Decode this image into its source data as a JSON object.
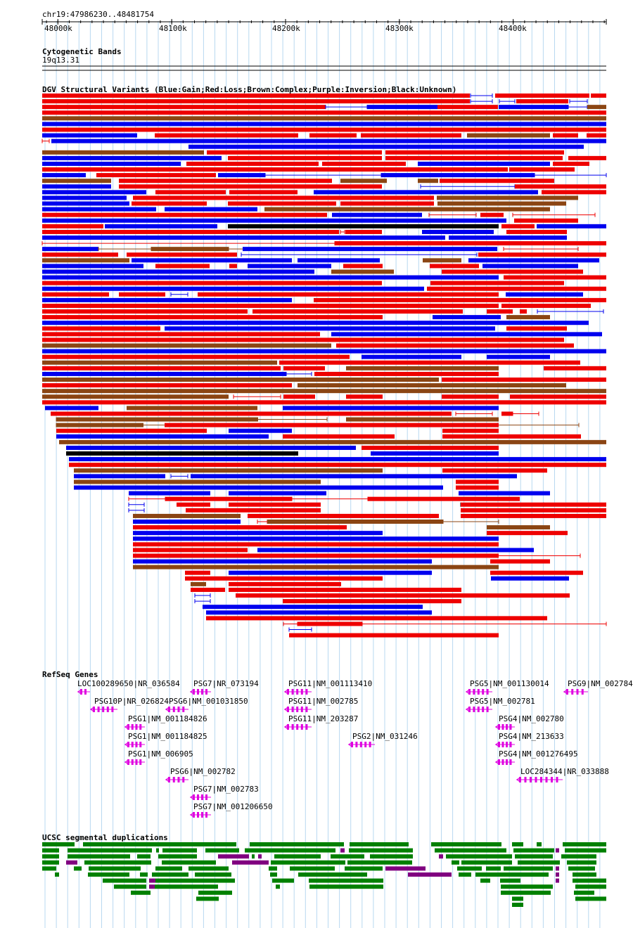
{
  "location": "chr19:47986230..48481754",
  "ruler": {
    "start": 47986230,
    "end": 48481754,
    "ticks": [
      {
        "pos": 48000000,
        "label": "48000k"
      },
      {
        "pos": 48100000,
        "label": "48100k"
      },
      {
        "pos": 48200000,
        "label": "48200k"
      },
      {
        "pos": 48300000,
        "label": "48300k"
      },
      {
        "pos": 48400000,
        "label": "48400k"
      }
    ]
  },
  "cytobands": {
    "title": "Cytogenetic Bands",
    "band": "19q13.31"
  },
  "dgv": {
    "title": "DGV Structural Variants (Blue:Gain;Red:Loss;Brown:Complex;Purple:Inversion;Black:Unknown)",
    "legend_colors": {
      "gain": "#0000ee",
      "loss": "#ee0000",
      "complex": "#8b4513",
      "inversion": "#800080",
      "unknown": "#000000"
    }
  },
  "refseq": {
    "title": "RefSeq Genes",
    "genes": [
      {
        "label": "LOC100289650|NR_036584"
      },
      {
        "label": "PSG7|NR_073194"
      },
      {
        "label": "PSG11|NM_001113410"
      },
      {
        "label": "PSG5|NM_001130014"
      },
      {
        "label": "PSG9|NM_002784"
      },
      {
        "label": "PSG10P|NR_026824"
      },
      {
        "label": "PSG6|NM_001031850"
      },
      {
        "label": "PSG11|NM_002785"
      },
      {
        "label": "PSG5|NM_002781"
      },
      {
        "label": "PSG1|NM_001184826"
      },
      {
        "label": "PSG11|NM_203287"
      },
      {
        "label": "PSG4|NM_002780"
      },
      {
        "label": "PSG1|NM_001184825"
      },
      {
        "label": "PSG2|NM_031246"
      },
      {
        "label": "PSG4|NM_213633"
      },
      {
        "label": "PSG1|NM_006905"
      },
      {
        "label": "PSG4|NM_001276495"
      },
      {
        "label": "PSG6|NM_002782"
      },
      {
        "label": "LOC284344|NR_033888"
      },
      {
        "label": "PSG7|NM_002783"
      },
      {
        "label": "PSG7|NM_001206650"
      }
    ]
  },
  "segdups": {
    "title": "UCSC segmental duplications",
    "colors": {
      "primary": "#008000",
      "secondary": "#800080"
    }
  }
}
